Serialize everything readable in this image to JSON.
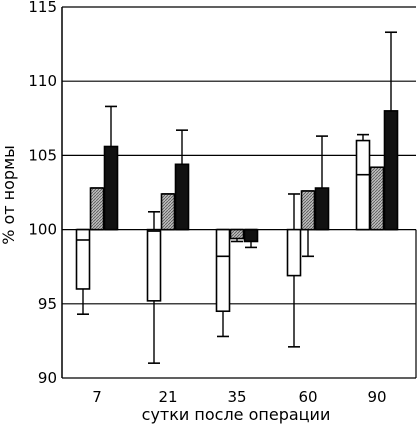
{
  "chart_data": {
    "type": "bar",
    "title": "",
    "xlabel": "сутки после операции",
    "ylabel": "% от нормы",
    "categories": [
      "7",
      "21",
      "35",
      "60",
      "90"
    ],
    "ylim": [
      90,
      115
    ],
    "yticks": [
      90,
      95,
      100,
      105,
      110,
      115
    ],
    "grid": "horizontal",
    "baseline": 100,
    "series": [
      {
        "fill": "white",
        "values": [
          99.3,
          99.9,
          98.2,
          100,
          103.7
        ],
        "box_low": [
          96,
          95.2,
          94.5,
          96.9,
          100
        ],
        "box_high": [
          100,
          100,
          100,
          100,
          106
        ],
        "error_low": [
          94.3,
          91,
          92.8,
          92.1,
          100
        ],
        "error_high": [
          100,
          101.2,
          100,
          102.4,
          106.4
        ]
      },
      {
        "fill": "gray-hatched",
        "values": [
          101.2,
          101.8,
          99.9,
          101.9,
          103.8
        ],
        "box_low": [
          100,
          100,
          99.4,
          100,
          100
        ],
        "box_high": [
          102.8,
          102.4,
          100,
          102.6,
          104.2
        ],
        "error_low": [
          100,
          100,
          99.2,
          98.2,
          100
        ],
        "error_high": [
          102.8,
          102.4,
          100,
          102.6,
          104.2
        ]
      },
      {
        "fill": "black",
        "values": [
          105.6,
          104.4,
          99.5,
          102.8,
          108
        ],
        "box_low": [
          100,
          100,
          99.2,
          100,
          100
        ],
        "box_high": [
          105.6,
          104.4,
          100,
          102.8,
          108
        ],
        "error_low": [
          100,
          100,
          98.8,
          100,
          100
        ],
        "error_high": [
          108.3,
          106.7,
          100,
          106.3,
          113.3
        ]
      }
    ],
    "colors": {
      "white": "#ffffff",
      "gray": "#8a8a8a",
      "black": "#111111"
    }
  }
}
